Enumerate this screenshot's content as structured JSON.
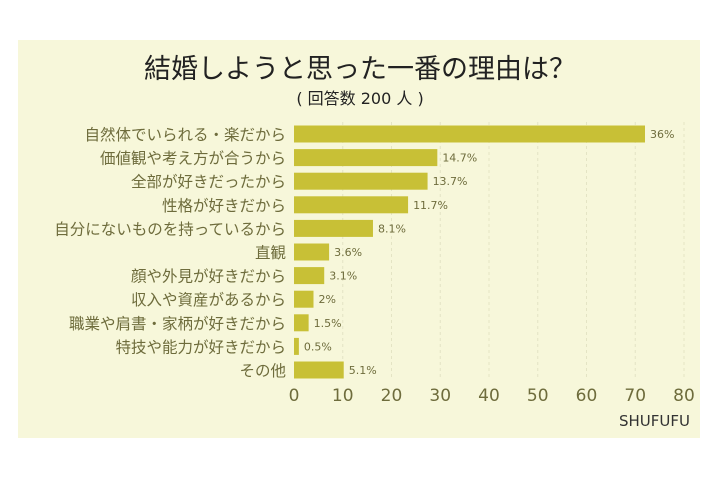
{
  "chart_data": {
    "type": "bar",
    "orientation": "horizontal",
    "title": "結婚しようと思った一番の理由は？",
    "subtitle": "( 回答数 200 人 )",
    "categories": [
      "自然体でいられる・楽だから",
      "価値観や考え方が合うから",
      "全部が好きだったから",
      "性格が好きだから",
      "自分にないものを持っているから",
      "直観",
      "顔や外見が好きだから",
      "収入や資産があるから",
      "職業や肩書・家柄が好きだから",
      "特技や能力が好きだから",
      "その他"
    ],
    "values": [
      72,
      29.4,
      27.4,
      23.4,
      16.2,
      7.2,
      6.2,
      4,
      3,
      1,
      10.2
    ],
    "data_labels": [
      "36%",
      "14.7%",
      "13.7%",
      "11.7%",
      "8.1%",
      "3.6%",
      "3.1%",
      "2%",
      "1.5%",
      "0.5%",
      "5.1%"
    ],
    "xlim": [
      0,
      80
    ],
    "xticks": [
      "0",
      "10",
      "20",
      "30",
      "40",
      "50",
      "60",
      "70",
      "80"
    ],
    "grid": "vertical dashed",
    "legend": "none",
    "colors": {
      "bar": "#c8c036",
      "text": "#6e6c3c",
      "background": "#f7f7da"
    }
  },
  "watermark": "SHUFUFU"
}
